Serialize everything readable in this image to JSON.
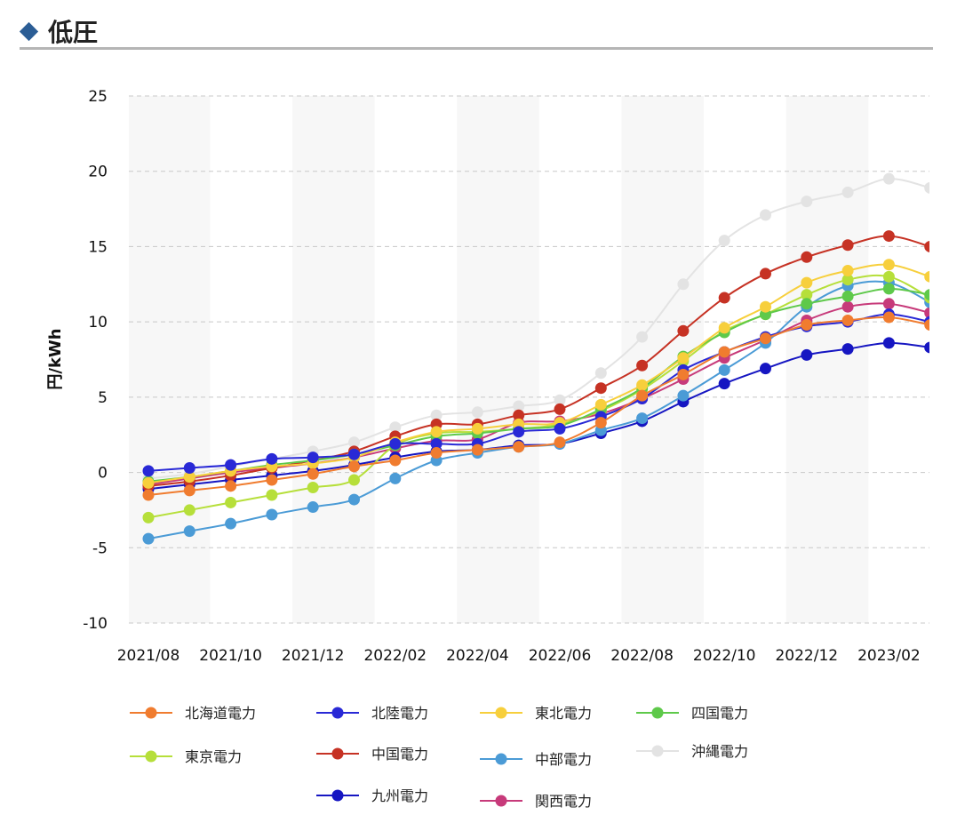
{
  "header": {
    "title": "低圧",
    "icon": "diamond-icon",
    "icon_color": "#2b5d95"
  },
  "chart_data": {
    "type": "line",
    "ylabel": "円/kWh",
    "xlabel": "",
    "ylim": [
      -10,
      25
    ],
    "yticks": [
      "25",
      "20",
      "15",
      "10",
      "5",
      "0",
      "-5",
      "-10"
    ],
    "categories": [
      "2021/08",
      "2021/09",
      "2021/10",
      "2021/11",
      "2021/12",
      "2022/01",
      "2022/02",
      "2022/03",
      "2022/04",
      "2022/05",
      "2022/06",
      "2022/07",
      "2022/08",
      "2022/09",
      "2022/10",
      "2022/11",
      "2022/12",
      "2023/01",
      "2023/02",
      "2023/03"
    ],
    "xtick_labels": [
      "2021/08",
      "2021/10",
      "2021/12",
      "2022/02",
      "2022/04",
      "2022/06",
      "2022/08",
      "2022/10",
      "2022/12",
      "2023/02"
    ],
    "grid": "horizontal dashed",
    "legend_position": "bottom",
    "series": [
      {
        "name": "北海道電力",
        "color": "#f07c2f",
        "values": [
          -1.5,
          -1.2,
          -0.9,
          -0.5,
          -0.1,
          0.4,
          0.8,
          1.3,
          1.5,
          1.7,
          2.0,
          3.3,
          5.1,
          6.5,
          8.0,
          8.9,
          9.8,
          10.1,
          10.3,
          9.8
        ]
      },
      {
        "name": "北陸電力",
        "color": "#2929d6",
        "values": [
          0.1,
          0.3,
          0.5,
          0.9,
          1.0,
          1.2,
          1.9,
          1.9,
          1.9,
          2.7,
          2.9,
          3.7,
          4.9,
          6.8,
          8.0,
          9.0,
          9.7,
          10.0,
          10.5,
          10.0
        ]
      },
      {
        "name": "東北電力",
        "color": "#f7cf3c",
        "values": [
          -0.7,
          -0.3,
          0.1,
          0.4,
          0.6,
          1.0,
          2.0,
          2.7,
          2.9,
          3.2,
          3.3,
          4.5,
          5.8,
          7.6,
          9.6,
          11.0,
          12.6,
          13.4,
          13.8,
          13.0
        ]
      },
      {
        "name": "四国電力",
        "color": "#5ec94a",
        "values": [
          -0.6,
          -0.3,
          0.1,
          0.5,
          0.8,
          1.2,
          1.8,
          2.4,
          2.6,
          2.9,
          3.1,
          4.2,
          5.6,
          7.7,
          9.3,
          10.5,
          11.2,
          11.7,
          12.2,
          11.8
        ]
      },
      {
        "name": "東京電力",
        "color": "#b6df3a",
        "values": [
          -3.0,
          -2.5,
          -2.0,
          -1.5,
          -1.0,
          -0.5,
          1.8,
          2.6,
          2.7,
          2.9,
          3.2,
          4.1,
          5.5,
          7.4,
          9.4,
          10.5,
          11.8,
          12.8,
          13.0,
          11.6
        ]
      },
      {
        "name": "中国電力",
        "color": "#c63224",
        "values": [
          -0.9,
          -0.6,
          -0.2,
          0.3,
          0.8,
          1.4,
          2.4,
          3.2,
          3.2,
          3.8,
          4.2,
          5.6,
          7.1,
          9.4,
          11.6,
          13.2,
          14.3,
          15.1,
          15.7,
          15.0
        ]
      },
      {
        "name": "中部電力",
        "color": "#4b9bd6",
        "values": [
          -4.4,
          -3.9,
          -3.4,
          -2.8,
          -2.3,
          -1.8,
          -0.4,
          0.8,
          1.3,
          1.7,
          1.9,
          2.8,
          3.6,
          5.1,
          6.8,
          8.6,
          11.0,
          12.4,
          12.6,
          11.3
        ]
      },
      {
        "name": "沖縄電力",
        "color": "#e3e3e3",
        "values": [
          -0.4,
          -0.1,
          0.4,
          0.9,
          1.4,
          2.0,
          3.0,
          3.8,
          4.0,
          4.4,
          4.8,
          6.6,
          9.0,
          12.5,
          15.4,
          17.1,
          18.0,
          18.6,
          19.5,
          18.9
        ]
      },
      {
        "name": "九州電力",
        "color": "#1616c2",
        "values": [
          -1.1,
          -0.8,
          -0.5,
          -0.2,
          0.1,
          0.5,
          1.0,
          1.4,
          1.5,
          1.8,
          1.9,
          2.6,
          3.4,
          4.7,
          5.9,
          6.9,
          7.8,
          8.2,
          8.6,
          8.3
        ]
      },
      {
        "name": "関西電力",
        "color": "#c73a7a",
        "values": [
          -0.8,
          -0.4,
          0.0,
          0.3,
          0.6,
          1.0,
          1.6,
          2.1,
          2.2,
          3.3,
          3.4,
          3.9,
          4.9,
          6.2,
          7.6,
          8.8,
          10.1,
          11.0,
          11.2,
          10.6
        ]
      }
    ]
  }
}
